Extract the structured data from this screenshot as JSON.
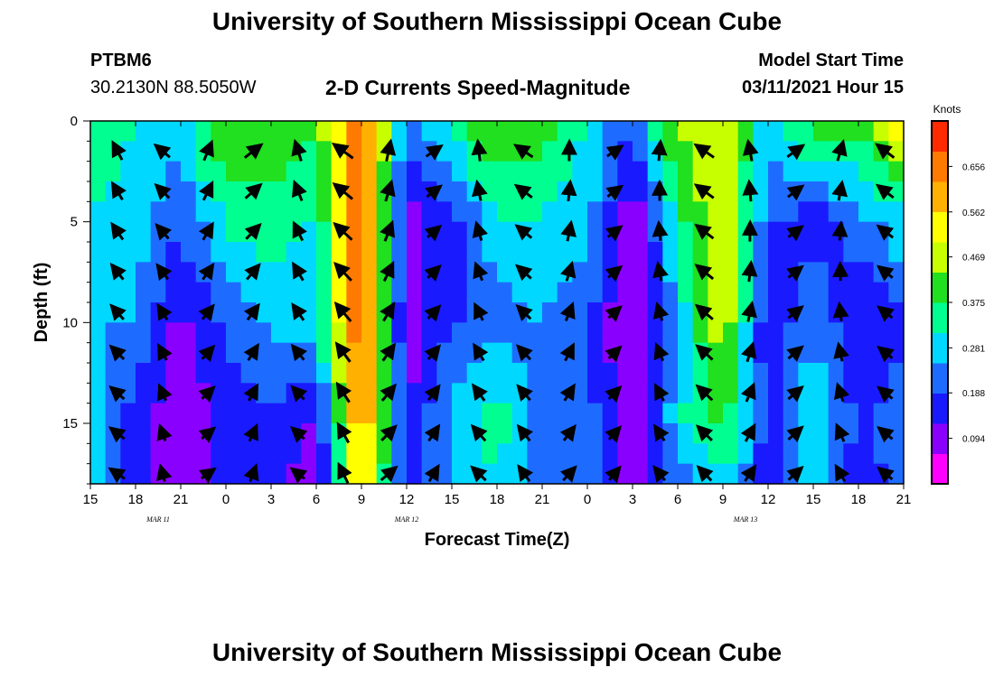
{
  "header": {
    "title": "University of Southern Mississippi Ocean Cube",
    "station_id": "PTBM6",
    "station_coords": "30.2130N 88.5050W",
    "subtitle": "2-D Currents Speed-Magnitude",
    "model_start_label": "Model Start Time",
    "model_start_value": "03/11/2021 Hour 15"
  },
  "footer": {
    "title": "University of Southern Mississippi Ocean Cube"
  },
  "colors": {
    "scale": [
      "#ff00ff",
      "#8a00ff",
      "#1a1aff",
      "#1e6cff",
      "#00d8ff",
      "#00ff90",
      "#20e020",
      "#c8ff00",
      "#ffff00",
      "#ffb000",
      "#ff7a00",
      "#ff2a00"
    ],
    "frame": "#000000",
    "arrow": "#000000"
  },
  "chart_data": {
    "type": "heatmap",
    "title": "2-D Currents Speed-Magnitude",
    "xlabel": "Forecast Time(Z)",
    "ylabel": "Depth (ft)",
    "xlim": [
      15,
      69
    ],
    "ylim": [
      0,
      18
    ],
    "x_ticks": [
      15,
      18,
      21,
      24,
      27,
      30,
      33,
      36,
      39,
      42,
      45,
      48,
      51,
      54,
      57,
      60,
      63,
      66,
      69
    ],
    "x_tick_labels": [
      "15",
      "18",
      "21",
      "0",
      "3",
      "6",
      "9",
      "12",
      "15",
      "18",
      "21",
      "0",
      "3",
      "6",
      "9",
      "12",
      "15",
      "18",
      "21"
    ],
    "date_labels": [
      {
        "text": "MAR  11",
        "hour": 19.5
      },
      {
        "text": "MAR  12",
        "hour": 36
      },
      {
        "text": "MAR  13",
        "hour": 58.5
      }
    ],
    "y_ticks": [
      0,
      5,
      10,
      15
    ],
    "y_tick_labels": [
      "0",
      "5",
      "10",
      "15"
    ],
    "colorbar": {
      "unit": "Knots",
      "ticks": [
        0.656,
        0.562,
        0.469,
        0.375,
        0.281,
        0.188,
        0.094
      ],
      "tick_labels": [
        "0.656",
        "0.562",
        "0.469",
        "0.375",
        "0.281",
        "0.188",
        "0.094"
      ],
      "range": [
        0.0,
        0.75
      ]
    },
    "speed_profile_time": [
      15,
      18,
      21,
      24,
      27,
      30,
      33,
      36,
      39,
      42,
      45,
      48,
      51,
      54,
      57,
      60,
      63,
      66,
      69
    ],
    "speed_profile_depth": [
      0,
      5,
      10,
      15,
      18
    ],
    "speed_grid_knots": [
      [
        0.4,
        0.3,
        0.28,
        0.45,
        0.42,
        0.4,
        0.7,
        0.2,
        0.35,
        0.45,
        0.42,
        0.3,
        0.2,
        0.45,
        0.5,
        0.28,
        0.42,
        0.4,
        0.55
      ],
      [
        0.3,
        0.28,
        0.2,
        0.32,
        0.35,
        0.3,
        0.72,
        0.1,
        0.15,
        0.3,
        0.3,
        0.28,
        0.05,
        0.35,
        0.5,
        0.2,
        0.15,
        0.22,
        0.3
      ],
      [
        0.25,
        0.25,
        0.1,
        0.2,
        0.26,
        0.3,
        0.7,
        0.08,
        0.18,
        0.22,
        0.25,
        0.2,
        0.04,
        0.26,
        0.5,
        0.12,
        0.25,
        0.12,
        0.18
      ],
      [
        0.28,
        0.15,
        0.06,
        0.15,
        0.18,
        0.1,
        0.65,
        0.12,
        0.28,
        0.35,
        0.2,
        0.22,
        0.05,
        0.3,
        0.4,
        0.15,
        0.3,
        0.18,
        0.22
      ],
      [
        0.3,
        0.14,
        0.08,
        0.14,
        0.15,
        0.08,
        0.6,
        0.14,
        0.25,
        0.3,
        0.2,
        0.22,
        0.06,
        0.2,
        0.3,
        0.15,
        0.28,
        0.15,
        0.2
      ]
    ]
  }
}
